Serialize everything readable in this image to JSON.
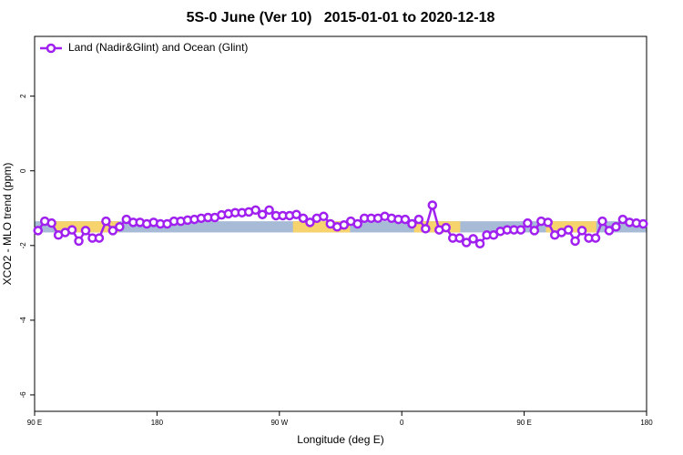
{
  "chart_data": {
    "type": "line",
    "title": "5S-0 June (Ver 10)   2015-01-01 to 2020-12-18",
    "x_label": "Longitude (deg E)",
    "y_label": "XCO2 - MLO trend (ppm)",
    "xlim": [
      90,
      540
    ],
    "ylim": [
      -6.44,
      3.6
    ],
    "xticks": [
      {
        "value": 90,
        "label": "90 E"
      },
      180,
      {
        "value": 270,
        "label": "90 W"
      },
      {
        "value": 360,
        "label": "0"
      },
      {
        "value": 450,
        "label": "90 E"
      },
      {
        "value": 540,
        "label": "180"
      }
    ],
    "yticks": [
      2,
      0,
      -2,
      -4,
      -6
    ],
    "band": {
      "lower": -1.65,
      "upper": -1.35,
      "color": "#a7bbd7"
    },
    "highlight_regions": {
      "color": "#f6d36c",
      "ranges": [
        [
          105,
          152
        ],
        [
          280,
          322
        ],
        [
          369,
          403
        ],
        [
          466,
          503
        ]
      ]
    },
    "legend": "top-left",
    "x": [
      92.5,
      97.5,
      102.5,
      107.5,
      112.5,
      117.5,
      122.5,
      127.5,
      132.5,
      137.5,
      142.5,
      147.5,
      152.5,
      157.5,
      162.5,
      167.5,
      172.5,
      177.5,
      182.5,
      187.5,
      192.5,
      197.5,
      202.5,
      207.5,
      212.5,
      217.5,
      222.5,
      227.5,
      232.5,
      237.5,
      242.5,
      247.5,
      252.5,
      257.5,
      262.5,
      267.5,
      272.5,
      277.5,
      282.5,
      287.5,
      292.5,
      297.5,
      302.5,
      307.5,
      312.5,
      317.5,
      322.5,
      327.5,
      332.5,
      337.5,
      342.5,
      347.5,
      352.5,
      357.5,
      362.5,
      367.5,
      372.5,
      377.5,
      382.5,
      387.5,
      392.5,
      397.5,
      402.5,
      407.5,
      412.5,
      417.5,
      422.5,
      427.5,
      432.5,
      437.5,
      442.5,
      447.5,
      452.5,
      457.5,
      462.5,
      467.5,
      472.5,
      477.5,
      482.5,
      487.5,
      492.5,
      497.5,
      502.5,
      507.5,
      512.5,
      517.5,
      522.5,
      527.5,
      532.5,
      537.5
    ],
    "series": [
      {
        "name": "Land (Nadir&Glint) and Ocean (Glint)",
        "color": "#a020f0",
        "values": [
          -1.6,
          -1.35,
          -1.4,
          -1.72,
          -1.65,
          -1.58,
          -1.88,
          -1.6,
          -1.8,
          -1.8,
          -1.35,
          -1.6,
          -1.5,
          -1.3,
          -1.38,
          -1.38,
          -1.42,
          -1.38,
          -1.42,
          -1.42,
          -1.35,
          -1.35,
          -1.32,
          -1.3,
          -1.27,
          -1.25,
          -1.25,
          -1.18,
          -1.15,
          -1.12,
          -1.12,
          -1.1,
          -1.05,
          -1.17,
          -1.05,
          -1.2,
          -1.2,
          -1.2,
          -1.17,
          -1.27,
          -1.38,
          -1.27,
          -1.22,
          -1.42,
          -1.5,
          -1.45,
          -1.35,
          -1.42,
          -1.27,
          -1.27,
          -1.27,
          -1.22,
          -1.27,
          -1.3,
          -1.3,
          -1.42,
          -1.3,
          -1.55,
          -0.92,
          -1.58,
          -1.52,
          -1.8,
          -1.8,
          -1.92,
          -1.82,
          -1.95,
          -1.72,
          -1.72,
          -1.62,
          -1.58,
          -1.58,
          -1.58,
          -1.4,
          -1.6,
          -1.35,
          -1.38,
          -1.72,
          -1.65,
          -1.58,
          -1.88,
          -1.6,
          -1.8,
          -1.8,
          -1.35,
          -1.6,
          -1.5,
          -1.3,
          -1.38,
          -1.4,
          -1.42
        ]
      }
    ]
  }
}
